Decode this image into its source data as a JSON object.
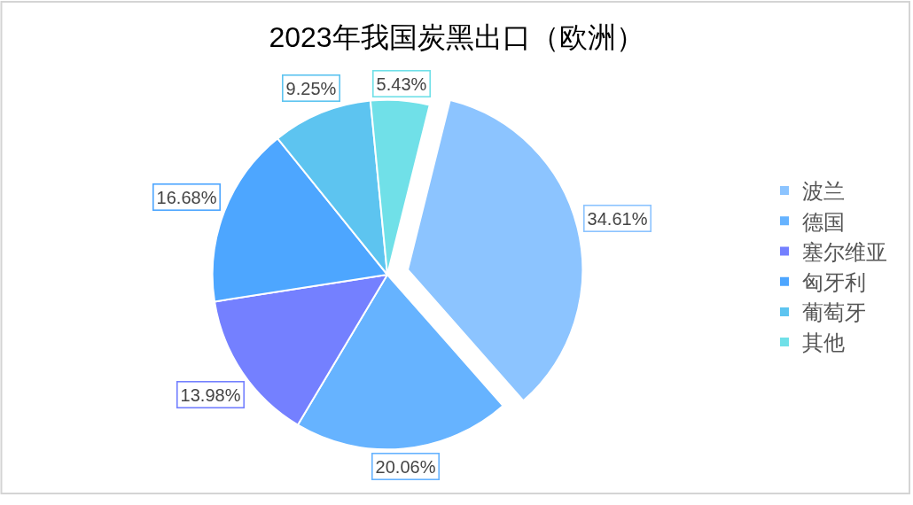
{
  "chart_data": {
    "type": "pie",
    "title": "2023年我国炭黑出口（欧洲）",
    "categories": [
      "波兰",
      "德国",
      "塞尔维亚",
      "匈牙利",
      "葡萄牙",
      "其他"
    ],
    "values": [
      34.61,
      20.06,
      13.98,
      16.68,
      9.25,
      5.43
    ],
    "colors": [
      "#8cc4ff",
      "#66b3ff",
      "#7480ff",
      "#4da6ff",
      "#5dc4f0",
      "#70e0e8"
    ],
    "value_labels": [
      "34.61%",
      "20.06%",
      "13.98%",
      "16.68%",
      "9.25%",
      "5.43%"
    ],
    "legend": "right"
  }
}
